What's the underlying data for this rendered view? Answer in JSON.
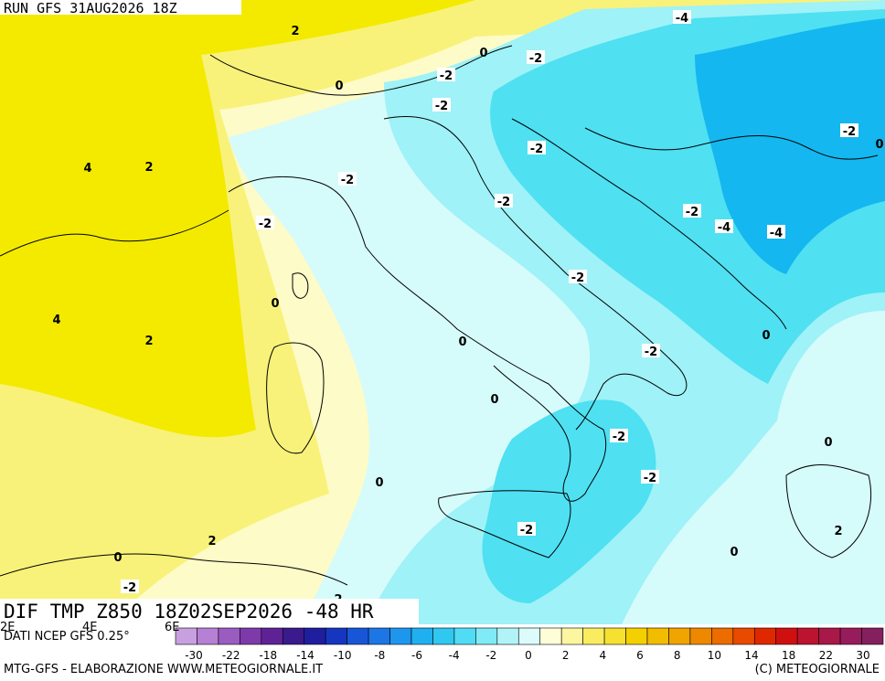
{
  "header": {
    "run_label": "RUN GFS 31AUG2026 18Z"
  },
  "title": {
    "text": "DIF TMP Z850 18Z02SEP2026 -48 HR"
  },
  "footer": {
    "source": "DATI NCEP GFS 0.25°",
    "credits_left": "MTG-GFS - ELABORAZIONE WWW.METEOGIORNALE.IT",
    "credits_right": "(C) METEOGIORNALE",
    "partial_lon_labels": [
      "2E",
      "4E",
      "6E"
    ]
  },
  "colors": {
    "sea_yellow_dark": "#f3ea00",
    "yellow": "#f8f27a",
    "pale_yellow": "#fdfbc7",
    "pale_cyan": "#d6fbfb",
    "cyan_light": "#9ff2f7",
    "cyan": "#4fe0f2",
    "blue": "#14b7ef"
  },
  "legend": {
    "colors": [
      "#c8a0e0",
      "#b680d4",
      "#9a5cc0",
      "#7e3aaa",
      "#5e2296",
      "#3a1a8c",
      "#1e1e9e",
      "#1636c0",
      "#1856d8",
      "#1c76e6",
      "#1e96ee",
      "#20b0f0",
      "#30c8f0",
      "#50dcf4",
      "#80eaf6",
      "#b0f4f8",
      "#dcfcfc",
      "#fdfdd8",
      "#fcf6a0",
      "#faec60",
      "#f6e030",
      "#f4d000",
      "#f2bc00",
      "#f0a400",
      "#ee8800",
      "#ec6c00",
      "#e84a00",
      "#e02800",
      "#d01010",
      "#bc1430",
      "#a81848",
      "#961c5c",
      "#84205e"
    ],
    "ticks": [
      "-30",
      "-22",
      "-18",
      "-14",
      "-10",
      "-8",
      "-6",
      "-4",
      "-2",
      "0",
      "2",
      "4",
      "6",
      "8",
      "10",
      "14",
      "18",
      "22",
      "30"
    ]
  },
  "contour_labels": [
    {
      "text": "2"
    },
    {
      "text": "-4"
    },
    {
      "text": "0"
    },
    {
      "text": "-2"
    },
    {
      "text": "0"
    },
    {
      "text": "-2"
    },
    {
      "text": "-2"
    },
    {
      "text": "4"
    },
    {
      "text": "2"
    },
    {
      "text": "-2"
    },
    {
      "text": "-2"
    },
    {
      "text": "-2"
    },
    {
      "text": "-2"
    },
    {
      "text": "-4"
    },
    {
      "text": "-4"
    },
    {
      "text": "-2"
    },
    {
      "text": "0"
    },
    {
      "text": "-2"
    },
    {
      "text": "4"
    },
    {
      "text": "2"
    },
    {
      "text": "0"
    },
    {
      "text": "0"
    },
    {
      "text": "-2"
    },
    {
      "text": "0"
    },
    {
      "text": "-2"
    },
    {
      "text": "0"
    },
    {
      "text": "-2"
    },
    {
      "text": "0"
    },
    {
      "text": "2"
    },
    {
      "text": "-2"
    },
    {
      "text": "2"
    },
    {
      "text": "0"
    },
    {
      "text": "0"
    },
    {
      "text": "-2"
    },
    {
      "text": "2"
    },
    {
      "text": "-2"
    },
    {
      "text": "0"
    }
  ]
}
